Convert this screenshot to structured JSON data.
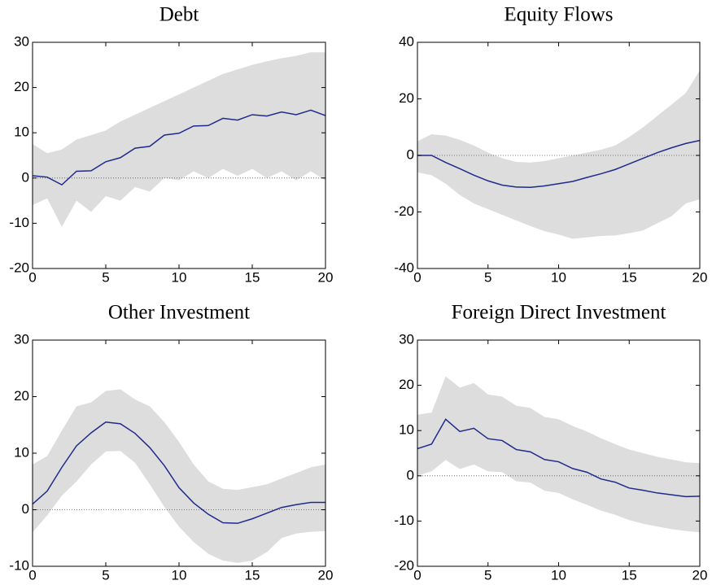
{
  "chart_data": [
    {
      "type": "line",
      "title": "Debt",
      "x": [
        0,
        1,
        2,
        3,
        4,
        5,
        6,
        7,
        8,
        9,
        10,
        11,
        12,
        13,
        14,
        15,
        16,
        17,
        18,
        19,
        20
      ],
      "xlim": [
        0,
        20
      ],
      "xticks": [
        0,
        5,
        10,
        15,
        20
      ],
      "ylim": [
        -20,
        30
      ],
      "yticks": [
        -20,
        -10,
        0,
        10,
        20,
        30
      ],
      "zero_line": true,
      "series": [
        {
          "color": "#1f2a8c",
          "values": [
            0.5,
            0.2,
            -1.5,
            1.5,
            1.6,
            3.6,
            4.5,
            6.6,
            7,
            9.5,
            9.9,
            11.5,
            11.6,
            13.2,
            12.8,
            14,
            13.7,
            14.6,
            14,
            15,
            13.8
          ]
        }
      ],
      "band": {
        "color": "#dddddd",
        "upper": [
          7.5,
          5.5,
          6.3,
          8.5,
          9.5,
          10.5,
          12.5,
          14,
          15.5,
          17,
          18.5,
          20,
          21.5,
          23,
          24,
          25,
          25.8,
          26.5,
          27,
          27.8,
          27.8
        ],
        "lower": [
          -6,
          -4.5,
          -10.8,
          -5,
          -7.5,
          -4,
          -5,
          -2,
          -3,
          0,
          -0.5,
          1.5,
          0,
          2,
          0.5,
          2,
          0,
          1.5,
          -0.5,
          1.5,
          -0.5
        ]
      }
    },
    {
      "type": "line",
      "title": "Equity Flows",
      "x": [
        0,
        1,
        2,
        3,
        4,
        5,
        6,
        7,
        8,
        9,
        10,
        11,
        12,
        13,
        14,
        15,
        16,
        17,
        18,
        19,
        20
      ],
      "xlim": [
        0,
        20
      ],
      "xticks": [
        0,
        5,
        10,
        15,
        20
      ],
      "ylim": [
        -40,
        40
      ],
      "yticks": [
        -40,
        -20,
        0,
        20,
        40
      ],
      "zero_line": true,
      "series": [
        {
          "color": "#1f2a8c",
          "values": [
            0,
            0,
            -2.5,
            -4.7,
            -7,
            -9,
            -10.5,
            -11.2,
            -11.3,
            -10.8,
            -10,
            -9.2,
            -7.8,
            -6.5,
            -5,
            -3,
            -1,
            1,
            2.7,
            4.2,
            5.3
          ]
        }
      ],
      "band": {
        "color": "#dddddd",
        "upper": [
          5,
          7.5,
          7,
          5.5,
          3.5,
          1,
          -1,
          -2.3,
          -2.5,
          -2,
          -1,
          0,
          1,
          2,
          3.5,
          6.5,
          10,
          14,
          18,
          22,
          30
        ],
        "lower": [
          -6,
          -7,
          -10,
          -14,
          -17,
          -19,
          -21,
          -23,
          -25,
          -26.8,
          -28,
          -29.5,
          -29,
          -28.5,
          -28.3,
          -27.5,
          -26.5,
          -24,
          -21.5,
          -17,
          -15.5
        ]
      }
    },
    {
      "type": "line",
      "title": "Other Investment",
      "x": [
        0,
        1,
        2,
        3,
        4,
        5,
        6,
        7,
        8,
        9,
        10,
        11,
        12,
        13,
        14,
        15,
        16,
        17,
        18,
        19,
        20
      ],
      "xlim": [
        0,
        20
      ],
      "xticks": [
        0,
        5,
        10,
        15,
        20
      ],
      "ylim": [
        -10,
        30
      ],
      "yticks": [
        -10,
        0,
        10,
        20,
        30
      ],
      "zero_line": true,
      "series": [
        {
          "color": "#1f2a8c",
          "values": [
            1,
            3.3,
            7.5,
            11.3,
            13.6,
            15.5,
            15.2,
            13.5,
            11,
            7.8,
            3.9,
            1.2,
            -0.8,
            -2.3,
            -2.4,
            -1.6,
            -0.6,
            0.4,
            0.9,
            1.3,
            1.3
          ]
        }
      ],
      "band": {
        "color": "#dddddd",
        "upper": [
          8,
          9.5,
          14,
          18.3,
          19,
          21,
          21.3,
          19.5,
          18.3,
          15.5,
          12,
          8,
          5,
          3.7,
          3.5,
          4,
          4.5,
          5.5,
          6.5,
          7.5,
          8
        ],
        "lower": [
          -4,
          -1,
          2.5,
          5,
          8,
          10.3,
          10.4,
          8.3,
          4.5,
          0.5,
          -3,
          -5.7,
          -7.8,
          -9,
          -9.4,
          -9,
          -7.5,
          -5,
          -4.2,
          -3.9,
          -3.8
        ]
      }
    },
    {
      "type": "line",
      "title": "Foreign Direct Investment",
      "x": [
        0,
        1,
        2,
        3,
        4,
        5,
        6,
        7,
        8,
        9,
        10,
        11,
        12,
        13,
        14,
        15,
        16,
        17,
        18,
        19,
        20
      ],
      "xlim": [
        0,
        20
      ],
      "xticks": [
        0,
        5,
        10,
        15,
        20
      ],
      "ylim": [
        -20,
        30
      ],
      "yticks": [
        -20,
        -10,
        0,
        10,
        20,
        30
      ],
      "zero_line": true,
      "series": [
        {
          "color": "#1f2a8c",
          "values": [
            6,
            7,
            12.5,
            9.8,
            10.5,
            8.2,
            7.8,
            5.8,
            5.3,
            3.6,
            3.1,
            1.6,
            0.8,
            -0.7,
            -1.4,
            -2.7,
            -3.2,
            -3.8,
            -4.2,
            -4.6,
            -4.5
          ]
        }
      ],
      "band": {
        "color": "#dddddd",
        "upper": [
          13.5,
          14,
          22,
          19.5,
          20.5,
          18,
          17.5,
          15.5,
          15,
          13,
          12.5,
          11,
          9.8,
          8.3,
          7,
          5.8,
          5,
          4.2,
          3.6,
          3,
          2.8
        ],
        "lower": [
          0,
          1,
          3.5,
          1.5,
          2.5,
          1,
          0.8,
          -1.2,
          -1.5,
          -3.3,
          -3.8,
          -5.2,
          -6.4,
          -7.7,
          -8.6,
          -9.8,
          -10.6,
          -11.2,
          -11.8,
          -12.2,
          -12.5
        ]
      }
    }
  ]
}
